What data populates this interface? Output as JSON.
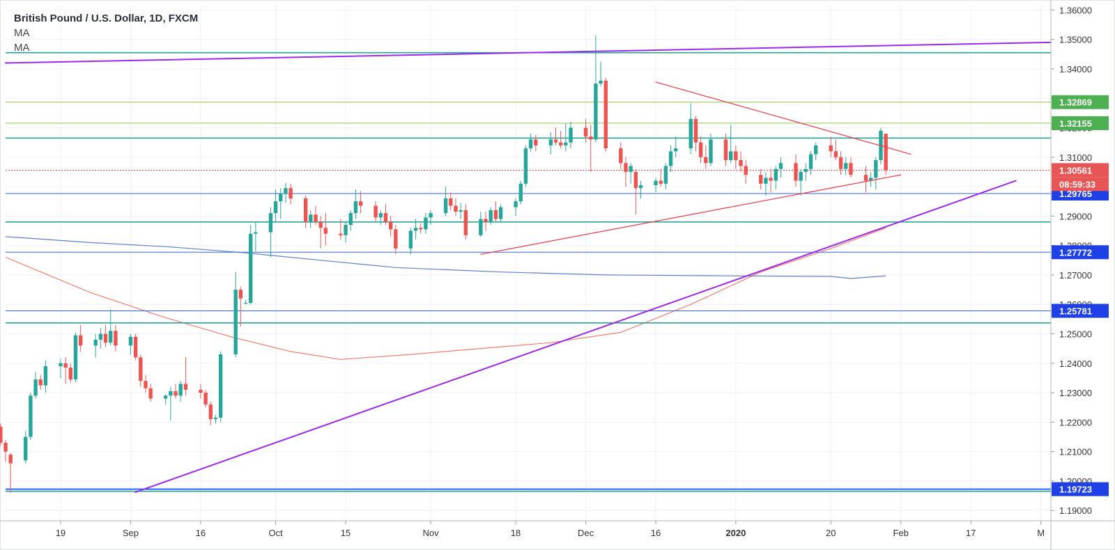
{
  "legend": {
    "title": "British Pound / U.S. Dollar, 1D, FXCM",
    "ma1": "MA",
    "ma2": "MA"
  },
  "colors": {
    "up": "#26a69a",
    "down": "#ef5350",
    "trend_purple": "#9c27f0",
    "triangle_red": "#f23645",
    "ma_fast": "#f57c6b",
    "ma_slow": "#5b7fc7",
    "teal_line": "#26a69a",
    "green_line": "#8bc34a",
    "blue_line": "#2962ff",
    "price_box": "#e85555",
    "label_green": "#4caf50",
    "label_blue": "#1e40e6",
    "grid": "#eef0f4",
    "axis_text": "#333333"
  },
  "chart_data": {
    "type": "candlestick",
    "title": "British Pound / U.S. Dollar, 1D, FXCM",
    "ylim": [
      1.1865,
      1.3615
    ],
    "y_ticks": [
      "1.36000",
      "1.35000",
      "1.34000",
      "1.33000",
      "1.32000",
      "1.31000",
      "1.30000",
      "1.29000",
      "1.28000",
      "1.27000",
      "1.26000",
      "1.25000",
      "1.24000",
      "1.23000",
      "1.22000",
      "1.21000",
      "1.20000",
      "1.19000"
    ],
    "x_ticks": [
      {
        "label": "19",
        "date": "2019-08-19"
      },
      {
        "label": "Sep",
        "date": "2019-09-02"
      },
      {
        "label": "16",
        "date": "2019-09-16"
      },
      {
        "label": "Oct",
        "date": "2019-10-01"
      },
      {
        "label": "15",
        "date": "2019-10-15"
      },
      {
        "label": "Nov",
        "date": "2019-11-01"
      },
      {
        "label": "18",
        "date": "2019-11-18"
      },
      {
        "label": "Dec",
        "date": "2019-12-02"
      },
      {
        "label": "16",
        "date": "2019-12-16"
      },
      {
        "label": "2020",
        "date": "2020-01-01"
      },
      {
        "label": "20",
        "date": "2020-01-20"
      },
      {
        "label": "Feb",
        "date": "2020-02-03"
      },
      {
        "label": "17",
        "date": "2020-02-17"
      },
      {
        "label": "M",
        "date": "2020-03-02"
      }
    ],
    "date_range": [
      "2019-08-08",
      "2020-03-04"
    ],
    "last_date": "2020-01-31",
    "candles": [
      [
        1.2155,
        1.217,
        1.2135,
        1.2148
      ],
      [
        1.2148,
        1.219,
        1.214,
        1.2175
      ],
      [
        1.217,
        1.2185,
        1.21,
        1.213
      ],
      [
        1.2125,
        1.214,
        1.201,
        1.202
      ],
      [
        1.203,
        1.208,
        1.2015,
        1.206
      ],
      [
        1.206,
        1.209,
        1.205,
        1.208
      ],
      [
        1.2075,
        1.211,
        1.2055,
        1.2065
      ],
      [
        1.2065,
        1.2095,
        1.205,
        1.2085
      ],
      [
        1.2085,
        1.211,
        1.205,
        1.206
      ],
      [
        1.206,
        1.216,
        1.2055,
        1.215
      ],
      [
        1.215,
        1.218,
        1.213,
        1.217
      ],
      [
        1.217,
        1.219,
        1.212,
        1.213
      ],
      [
        1.213,
        1.2175,
        1.211,
        1.2165
      ],
      [
        1.2165,
        1.218,
        1.212,
        1.2125
      ],
      [
        1.2125,
        1.229,
        1.212,
        1.228
      ],
      [
        1.228,
        1.23,
        1.226,
        1.2285
      ],
      [
        1.2285,
        1.229,
        1.222,
        1.2235
      ],
      [
        1.2235,
        1.23,
        1.2225,
        1.229
      ],
      [
        1.229,
        1.2305,
        1.221,
        1.2225
      ],
      [
        1.2225,
        1.224,
        1.219,
        1.22
      ],
      [
        1.22,
        1.2215,
        1.2175,
        1.2185
      ],
      [
        1.2185,
        1.2195,
        1.212,
        1.213
      ],
      [
        1.213,
        1.214,
        1.2065,
        1.21
      ],
      [
        1.209,
        1.2095,
        1.196,
        1.206
      ],
      [
        1.207,
        1.217,
        1.206,
        1.215
      ],
      [
        1.215,
        1.23,
        1.214,
        1.229
      ],
      [
        1.229,
        1.237,
        1.228,
        1.2345
      ],
      [
        1.2345,
        1.236,
        1.231,
        1.2325
      ],
      [
        1.2325,
        1.241,
        1.23,
        1.239
      ],
      [
        1.239,
        1.2415,
        1.235,
        1.24
      ],
      [
        1.24,
        1.242,
        1.233,
        1.2385
      ],
      [
        1.2385,
        1.24,
        1.2335,
        1.2345
      ],
      [
        1.2345,
        1.2505,
        1.2335,
        1.2495
      ],
      [
        1.2495,
        1.253,
        1.244,
        1.246
      ],
      [
        1.246,
        1.25,
        1.242,
        1.248
      ],
      [
        1.248,
        1.252,
        1.245,
        1.25
      ],
      [
        1.25,
        1.253,
        1.2455,
        1.247
      ],
      [
        1.247,
        1.2583,
        1.246,
        1.251
      ],
      [
        1.251,
        1.253,
        1.244,
        1.246
      ],
      [
        1.246,
        1.25,
        1.243,
        1.249
      ],
      [
        1.249,
        1.25,
        1.241,
        1.242
      ],
      [
        1.242,
        1.243,
        1.232,
        1.234
      ],
      [
        1.234,
        1.236,
        1.23,
        1.2315
      ],
      [
        1.2315,
        1.233,
        1.227,
        1.228
      ],
      [
        1.228,
        1.2295,
        1.226,
        1.229
      ],
      [
        1.229,
        1.232,
        1.2205,
        1.2305
      ],
      [
        1.2305,
        1.233,
        1.228,
        1.229
      ],
      [
        1.229,
        1.234,
        1.227,
        1.233
      ],
      [
        1.233,
        1.242,
        1.229,
        1.231
      ],
      [
        1.231,
        1.233,
        1.228,
        1.23
      ],
      [
        1.23,
        1.231,
        1.225,
        1.226
      ],
      [
        1.226,
        1.227,
        1.219,
        1.221
      ],
      [
        1.221,
        1.2225,
        1.2195,
        1.2215
      ],
      [
        1.2215,
        1.244,
        1.22,
        1.243
      ],
      [
        1.243,
        1.271,
        1.242,
        1.265
      ],
      [
        1.265,
        1.266,
        1.2525,
        1.262
      ],
      [
        1.2605,
        1.2615,
        1.26,
        1.2605
      ],
      [
        1.2605,
        1.287,
        1.26,
        1.284
      ],
      [
        1.284,
        1.288,
        1.278,
        1.2845
      ],
      [
        1.2845,
        1.293,
        1.276,
        1.291
      ],
      [
        1.291,
        1.299,
        1.288,
        1.295
      ],
      [
        1.295,
        1.2995,
        1.289,
        1.2975
      ],
      [
        1.2975,
        1.3012,
        1.2945,
        1.2995
      ],
      [
        1.2995,
        1.301,
        1.294,
        1.296
      ],
      [
        1.296,
        1.297,
        1.286,
        1.288
      ],
      [
        1.288,
        1.292,
        1.286,
        1.2905
      ],
      [
        1.2905,
        1.2935,
        1.287,
        1.288
      ],
      [
        1.288,
        1.29,
        1.279,
        1.286
      ],
      [
        1.286,
        1.291,
        1.28,
        1.284
      ],
      [
        1.284,
        1.289,
        1.282,
        1.2835
      ],
      [
        1.2835,
        1.288,
        1.281,
        1.287
      ],
      [
        1.287,
        1.292,
        1.285,
        1.291
      ],
      [
        1.291,
        1.299,
        1.289,
        1.295
      ],
      [
        1.295,
        1.2985,
        1.291,
        1.2935
      ],
      [
        1.2935,
        1.295,
        1.288,
        1.2895
      ],
      [
        1.2895,
        1.292,
        1.287,
        1.291
      ],
      [
        1.291,
        1.294,
        1.287,
        1.288
      ],
      [
        1.288,
        1.29,
        1.283,
        1.2855
      ],
      [
        1.2855,
        1.287,
        1.277,
        1.279
      ],
      [
        1.279,
        1.286,
        1.277,
        1.285
      ],
      [
        1.285,
        1.289,
        1.282,
        1.286
      ],
      [
        1.286,
        1.2875,
        1.284,
        1.2855
      ],
      [
        1.2855,
        1.291,
        1.284,
        1.2895
      ],
      [
        1.2895,
        1.292,
        1.287,
        1.291
      ],
      [
        1.291,
        1.3,
        1.29,
        1.296
      ],
      [
        1.296,
        1.298,
        1.292,
        1.2935
      ],
      [
        1.2935,
        1.296,
        1.29,
        1.2915
      ],
      [
        1.2915,
        1.2945,
        1.289,
        1.292
      ],
      [
        1.292,
        1.294,
        1.282,
        1.2835
      ],
      [
        1.2835,
        1.2915,
        1.283,
        1.289
      ],
      [
        1.289,
        1.2915,
        1.285,
        1.288
      ],
      [
        1.288,
        1.293,
        1.287,
        1.292
      ],
      [
        1.292,
        1.295,
        1.288,
        1.289
      ],
      [
        1.289,
        1.294,
        1.288,
        1.293
      ],
      [
        1.293,
        1.296,
        1.29,
        1.295
      ],
      [
        1.295,
        1.302,
        1.294,
        1.301
      ],
      [
        1.301,
        1.314,
        1.3,
        1.313
      ],
      [
        1.313,
        1.318,
        1.312,
        1.316
      ],
      [
        1.316,
        1.3175,
        1.312,
        1.314
      ],
      [
        1.314,
        1.3185,
        1.311,
        1.316
      ],
      [
        1.316,
        1.32,
        1.314,
        1.315
      ],
      [
        1.315,
        1.319,
        1.313,
        1.314
      ],
      [
        1.314,
        1.3215,
        1.312,
        1.315
      ],
      [
        1.315,
        1.322,
        1.313,
        1.32
      ],
      [
        1.32,
        1.323,
        1.315,
        1.317
      ],
      [
        1.317,
        1.321,
        1.305,
        1.316
      ],
      [
        1.316,
        1.3514,
        1.315,
        1.335
      ],
      [
        1.335,
        1.3425,
        1.334,
        1.336
      ],
      [
        1.336,
        1.337,
        1.312,
        1.313
      ],
      [
        1.313,
        1.315,
        1.306,
        1.308
      ],
      [
        1.308,
        1.31,
        1.3,
        1.305
      ],
      [
        1.305,
        1.308,
        1.301,
        1.307
      ],
      [
        1.305,
        1.306,
        1.2905,
        1.2995
      ],
      [
        1.2995,
        1.302,
        1.296,
        1.3005
      ],
      [
        1.3005,
        1.303,
        1.298,
        1.302
      ],
      [
        1.302,
        1.306,
        1.3,
        1.301
      ],
      [
        1.301,
        1.308,
        1.299,
        1.307
      ],
      [
        1.307,
        1.314,
        1.305,
        1.312
      ],
      [
        1.312,
        1.317,
        1.31,
        1.313
      ],
      [
        1.313,
        1.3283,
        1.311,
        1.323
      ],
      [
        1.323,
        1.324,
        1.312,
        1.315
      ],
      [
        1.315,
        1.317,
        1.308,
        1.31
      ],
      [
        1.31,
        1.314,
        1.306,
        1.308
      ],
      [
        1.308,
        1.318,
        1.307,
        1.316
      ],
      [
        1.316,
        1.318,
        1.307,
        1.309
      ],
      [
        1.309,
        1.321,
        1.308,
        1.312
      ],
      [
        1.312,
        1.314,
        1.306,
        1.309
      ],
      [
        1.309,
        1.312,
        1.305,
        1.307
      ],
      [
        1.307,
        1.309,
        1.301,
        1.304
      ],
      [
        1.304,
        1.306,
        1.299,
        1.301
      ],
      [
        1.301,
        1.305,
        1.297,
        1.303
      ],
      [
        1.303,
        1.306,
        1.298,
        1.302
      ],
      [
        1.302,
        1.307,
        1.299,
        1.306
      ],
      [
        1.306,
        1.31,
        1.303,
        1.308
      ],
      [
        1.308,
        1.311,
        1.3,
        1.302
      ],
      [
        1.302,
        1.306,
        1.297,
        1.305
      ],
      [
        1.305,
        1.308,
        1.302,
        1.306
      ],
      [
        1.306,
        1.312,
        1.304,
        1.311
      ],
      [
        1.311,
        1.315,
        1.309,
        1.314
      ],
      [
        1.314,
        1.317,
        1.31,
        1.312
      ],
      [
        1.312,
        1.316,
        1.309,
        1.31
      ],
      [
        1.31,
        1.312,
        1.304,
        1.306
      ],
      [
        1.306,
        1.31,
        1.304,
        1.308
      ],
      [
        1.308,
        1.31,
        1.303,
        1.304
      ],
      [
        1.304,
        1.307,
        1.298,
        1.302
      ],
      [
        1.302,
        1.305,
        1.3,
        1.303
      ],
      [
        1.303,
        1.31,
        1.299,
        1.309
      ],
      [
        1.309,
        1.32,
        1.3075,
        1.319
      ],
      [
        1.318,
        1.318,
        1.304,
        1.3056
      ]
    ],
    "moving_averages": [
      {
        "points": [
          [
            "2019-08-08",
            1.276
          ],
          [
            "2019-08-25",
            1.264
          ],
          [
            "2019-09-08",
            1.256
          ],
          [
            "2019-09-22",
            1.249
          ],
          [
            "2019-10-04",
            1.244
          ],
          [
            "2019-10-14",
            1.2413
          ],
          [
            "2019-10-28",
            1.243
          ],
          [
            "2019-11-11",
            1.245
          ],
          [
            "2019-11-25",
            1.247
          ],
          [
            "2019-12-09",
            1.2505
          ],
          [
            "2019-12-23",
            1.26
          ],
          [
            "2020-01-06",
            1.271
          ],
          [
            "2020-01-20",
            1.279
          ],
          [
            "2020-01-31",
            1.286
          ]
        ]
      },
      {
        "points": [
          [
            "2019-08-08",
            1.283
          ],
          [
            "2019-08-25",
            1.281
          ],
          [
            "2019-09-10",
            1.2795
          ],
          [
            "2019-09-25",
            1.2775
          ],
          [
            "2019-10-10",
            1.275
          ],
          [
            "2019-10-25",
            1.2725
          ],
          [
            "2019-11-15",
            1.271
          ],
          [
            "2019-12-06",
            1.27
          ],
          [
            "2019-12-30",
            1.2697
          ],
          [
            "2020-01-20",
            1.2695
          ],
          [
            "2020-01-24",
            1.2688
          ],
          [
            "2020-01-31",
            1.2697
          ]
        ]
      }
    ],
    "trendlines": [
      {
        "from": [
          "2019-09-03",
          1.1962
        ],
        "to": [
          "2020-02-26",
          1.302
        ]
      },
      {
        "from": [
          "2019-08-08",
          1.342
        ],
        "to": [
          "2020-03-04",
          1.349
        ]
      },
      {
        "from": [
          "2019-12-16",
          1.3355
        ],
        "to": [
          "2020-02-05",
          1.311
        ]
      },
      {
        "from": [
          "2019-11-11",
          1.277
        ],
        "to": [
          "2020-02-03",
          1.304
        ]
      }
    ],
    "horizontal_lines": [
      {
        "price": 1.3455,
        "style": "teal"
      },
      {
        "price": 1.32869,
        "style": "green"
      },
      {
        "price": 1.32155,
        "style": "green"
      },
      {
        "price": 1.3165,
        "style": "teal"
      },
      {
        "price": 1.29765,
        "style": "blue"
      },
      {
        "price": 1.288,
        "style": "teal"
      },
      {
        "price": 1.27772,
        "style": "blue"
      },
      {
        "price": 1.25781,
        "style": "blue"
      },
      {
        "price": 1.2537,
        "style": "teal"
      },
      {
        "price": 1.19723,
        "style": "blue"
      },
      {
        "price": 1.1965,
        "style": "teal"
      },
      {
        "price": 1.30561,
        "style": "dotted-red"
      }
    ],
    "price_labels": [
      {
        "price": 1.32869,
        "text": "1.32869",
        "style": "green"
      },
      {
        "price": 1.32155,
        "text": "1.32155",
        "style": "green"
      },
      {
        "price": 1.30561,
        "text": "1.30561",
        "style": "red"
      },
      {
        "price": 1.29765,
        "text": "1.29765",
        "style": "blue"
      },
      {
        "price": 1.27772,
        "text": "1.27772",
        "style": "blue"
      },
      {
        "price": 1.25781,
        "text": "1.25781",
        "style": "blue"
      },
      {
        "price": 1.19723,
        "text": "1.19723",
        "style": "blue"
      }
    ],
    "countdown": "08:59:33"
  }
}
